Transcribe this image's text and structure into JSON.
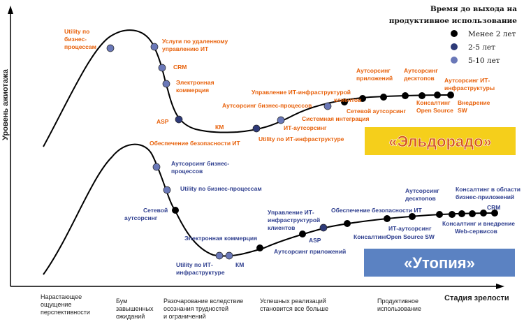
{
  "axis": {
    "y_label": "Уровень ажиотажа",
    "x_label": "Стадия зрелости"
  },
  "legend": {
    "title_line1": "Время до выхода на",
    "title_line2": "продуктивное использование",
    "items": [
      {
        "label": "Менее 2 лет",
        "color": "#000000"
      },
      {
        "label": "2-5 лет",
        "color": "#2e3a78"
      },
      {
        "label": "5-10 лет",
        "color": "#6a78b8"
      }
    ]
  },
  "stages": [
    {
      "lines": [
        "Нарастающее",
        "ощущение",
        "перспективности"
      ]
    },
    {
      "lines": [
        "Бум",
        "завышенных",
        "ожиданий"
      ]
    },
    {
      "lines": [
        "Разочарование вследствие",
        "осознания трудностей",
        "и ограничений"
      ]
    },
    {
      "lines": [
        "Успешных реализаций",
        "становится все больше"
      ]
    },
    {
      "lines": [
        "Продуктивное",
        "использование"
      ]
    }
  ],
  "banners": {
    "eldorado": {
      "text": "«Эльдорадо»",
      "bg": "#f5cf1b",
      "color": "#d4521b"
    },
    "utopia": {
      "text": "«Утопия»",
      "bg": "#5b82c2",
      "color": "#ffffff"
    }
  },
  "colors": {
    "accent_orange": "#e8620c",
    "accent_blue": "#2f3f8f"
  },
  "top_labels": [
    {
      "lines": [
        "Utility по",
        "бизнес-",
        "процессам"
      ]
    },
    {
      "lines": [
        "Услуги по удаленному",
        "управлению ИТ"
      ]
    },
    {
      "lines": [
        "CRM"
      ]
    },
    {
      "lines": [
        "Электронная",
        "коммерция"
      ]
    },
    {
      "lines": [
        "ASP"
      ]
    },
    {
      "lines": [
        "КМ"
      ]
    },
    {
      "lines": [
        "Обеспечение безопасности ИТ"
      ]
    },
    {
      "lines": [
        "Utility по ИТ-инфраструктуре"
      ]
    },
    {
      "lines": [
        "ИТ-аутсорсинг"
      ]
    },
    {
      "lines": [
        "Системная интеграция"
      ]
    },
    {
      "lines": [
        "Аутсорсинг бизнес-процессов"
      ]
    },
    {
      "lines": [
        "Управление  ИТ-инфраструктурой",
        "клиентов"
      ]
    },
    {
      "lines": [
        "Сетевой аутсорсинг"
      ]
    },
    {
      "lines": [
        "Аутсорсинг",
        "приложений"
      ]
    },
    {
      "lines": [
        "Аутсорсинг",
        "десктопов"
      ]
    },
    {
      "lines": [
        "Аутсорсинг  ИТ-",
        "инфраструктуры"
      ]
    },
    {
      "lines": [
        "Консалтинг",
        "Open Source"
      ]
    },
    {
      "lines": [
        "Внедрение",
        "SW"
      ]
    }
  ],
  "bottom_labels": [
    {
      "lines": [
        "Аутсорсинг бизнес-",
        "процессов"
      ]
    },
    {
      "lines": [
        "Utility по бизнес-процессам"
      ]
    },
    {
      "lines": [
        "Сетевой",
        "аутсорсинг"
      ]
    },
    {
      "lines": [
        "Электронная коммерция"
      ]
    },
    {
      "lines": [
        "Utility по ИТ-",
        "инфраструктуре"
      ]
    },
    {
      "lines": [
        "КМ"
      ]
    },
    {
      "lines": [
        "Аутсорсинг приложений"
      ]
    },
    {
      "lines": [
        "ASP"
      ]
    },
    {
      "lines": [
        "Управление  ИТ-",
        "инфраструктурой",
        "клиентов"
      ]
    },
    {
      "lines": [
        "Обеспечение безопасности ИТ"
      ]
    },
    {
      "lines": [
        "ИТ-аутсорсинг"
      ]
    },
    {
      "lines": [
        "Консалтинг"
      ]
    },
    {
      "lines": [
        "Open Source SW"
      ]
    },
    {
      "lines": [
        "Аутсорсинг",
        "десктопов"
      ]
    },
    {
      "lines": [
        "Консалтинг в области",
        "бизнес-приложений"
      ]
    },
    {
      "lines": [
        "CRM"
      ]
    },
    {
      "lines": [
        "Консалтинг и внедрение",
        "Web-сервисов"
      ]
    }
  ]
}
